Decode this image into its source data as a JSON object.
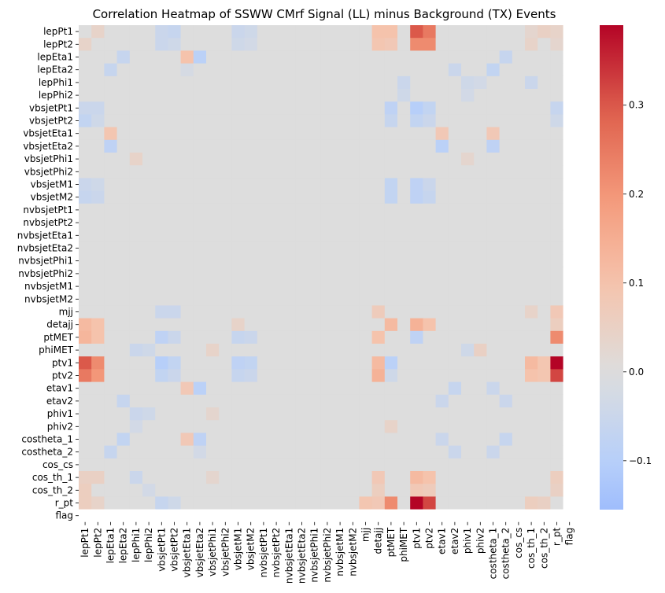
{
  "chart_data": {
    "type": "heatmap",
    "title": "Correlation Heatmap of SSWW CMrf  Signal (LL) minus Background (TX) Events",
    "labels": [
      "lepPt1",
      "lepPt2",
      "lepEta1",
      "lepEta2",
      "lepPhi1",
      "lepPhi2",
      "vbsjetPt1",
      "vbsjetPt2",
      "vbsjetEta1",
      "vbsjetEta2",
      "vbsjetPhi1",
      "vbsjetPhi2",
      "vbsjetM1",
      "vbsjetM2",
      "nvbsjetPt1",
      "nvbsjetPt2",
      "nvbsjetEta1",
      "nvbsjetEta2",
      "nvbsjetPhi1",
      "nvbsjetPhi2",
      "nvbsjetM1",
      "nvbsjetM2",
      "mjj",
      "detajj",
      "ptMET",
      "phiMET",
      "ptv1",
      "ptv2",
      "etav1",
      "etav2",
      "phiv1",
      "phiv2",
      "costheta_1",
      "costheta_2",
      "cos_cs",
      "cos_th_1",
      "cos_th_2",
      "r_pt",
      "flag"
    ],
    "colormap": "coolwarm",
    "vmin": -0.155,
    "vmax": 0.39,
    "colorbar_ticks": [
      -0.1,
      0.0,
      0.1,
      0.2,
      0.3
    ],
    "colorbar_tick_labels": [
      "−0.1",
      "0.0",
      "0.1",
      "0.2",
      "0.3"
    ],
    "cells": [
      [
        "lepPt1",
        "lepPt2",
        0.04
      ],
      [
        "lepPt1",
        "vbsjetPt1",
        -0.05
      ],
      [
        "lepPt1",
        "vbsjetPt2",
        -0.06
      ],
      [
        "lepPt1",
        "vbsjetM1",
        -0.05
      ],
      [
        "lepPt1",
        "vbsjetM2",
        -0.04
      ],
      [
        "lepPt1",
        "detajj",
        0.1
      ],
      [
        "lepPt1",
        "ptMET",
        0.1
      ],
      [
        "lepPt1",
        "ptv1",
        0.3
      ],
      [
        "lepPt1",
        "ptv2",
        0.25
      ],
      [
        "lepPt1",
        "cos_th_1",
        0.03
      ],
      [
        "lepPt1",
        "cos_th_2",
        0.05
      ],
      [
        "lepPt1",
        "r_pt",
        0.04
      ],
      [
        "lepPt2",
        "lepPt1",
        0.04
      ],
      [
        "lepPt2",
        "vbsjetPt1",
        -0.05
      ],
      [
        "lepPt2",
        "vbsjetPt2",
        -0.04
      ],
      [
        "lepPt2",
        "vbsjetM1",
        -0.04
      ],
      [
        "lepPt2",
        "vbsjetM2",
        -0.03
      ],
      [
        "lepPt2",
        "detajj",
        0.09
      ],
      [
        "lepPt2",
        "ptMET",
        0.08
      ],
      [
        "lepPt2",
        "ptv1",
        0.22
      ],
      [
        "lepPt2",
        "ptv2",
        0.22
      ],
      [
        "lepPt2",
        "cos_th_1",
        0.04
      ],
      [
        "lepPt2",
        "r_pt",
        0.03
      ],
      [
        "lepEta1",
        "lepEta2",
        -0.06
      ],
      [
        "lepEta1",
        "vbsjetEta1",
        0.1
      ],
      [
        "lepEta1",
        "vbsjetEta2",
        -0.09
      ],
      [
        "lepEta1",
        "costheta_2",
        -0.06
      ],
      [
        "lepEta2",
        "lepEta1",
        -0.06
      ],
      [
        "lepEta2",
        "vbsjetEta1",
        -0.02
      ],
      [
        "lepEta2",
        "etav2",
        -0.05
      ],
      [
        "lepEta2",
        "costheta_1",
        -0.07
      ],
      [
        "lepPhi1",
        "phiMET",
        -0.05
      ],
      [
        "lepPhi1",
        "phiv1",
        -0.04
      ],
      [
        "lepPhi1",
        "phiv2",
        -0.03
      ],
      [
        "lepPhi1",
        "cos_th_1",
        -0.05
      ],
      [
        "lepPhi2",
        "phiMET",
        -0.04
      ],
      [
        "lepPhi2",
        "phiv1",
        -0.03
      ],
      [
        "vbsjetPt1",
        "lepPt1",
        -0.05
      ],
      [
        "vbsjetPt1",
        "lepPt2",
        -0.05
      ],
      [
        "vbsjetPt1",
        "ptMET",
        -0.08
      ],
      [
        "vbsjetPt1",
        "ptv1",
        -0.1
      ],
      [
        "vbsjetPt1",
        "ptv2",
        -0.07
      ],
      [
        "vbsjetPt1",
        "r_pt",
        -0.06
      ],
      [
        "vbsjetPt2",
        "lepPt1",
        -0.07
      ],
      [
        "vbsjetPt2",
        "lepPt2",
        -0.04
      ],
      [
        "vbsjetPt2",
        "ptMET",
        -0.06
      ],
      [
        "vbsjetPt2",
        "ptv1",
        -0.07
      ],
      [
        "vbsjetPt2",
        "ptv2",
        -0.05
      ],
      [
        "vbsjetPt2",
        "r_pt",
        -0.04
      ],
      [
        "vbsjetEta1",
        "lepEta1",
        0.09
      ],
      [
        "vbsjetEta1",
        "etav1",
        0.08
      ],
      [
        "vbsjetEta1",
        "costheta_1",
        0.08
      ],
      [
        "vbsjetEta2",
        "lepEta1",
        -0.08
      ],
      [
        "vbsjetEta2",
        "etav1",
        -0.09
      ],
      [
        "vbsjetEta2",
        "costheta_1",
        -0.08
      ],
      [
        "vbsjetPhi1",
        "lepPhi1",
        0.04
      ],
      [
        "vbsjetPhi1",
        "phiv1",
        0.03
      ],
      [
        "vbsjetM1",
        "lepPt1",
        -0.05
      ],
      [
        "vbsjetM1",
        "lepPt2",
        -0.04
      ],
      [
        "vbsjetM1",
        "ptMET",
        -0.07
      ],
      [
        "vbsjetM1",
        "ptv1",
        -0.08
      ],
      [
        "vbsjetM1",
        "ptv2",
        -0.05
      ],
      [
        "vbsjetM2",
        "lepPt1",
        -0.06
      ],
      [
        "vbsjetM2",
        "lepPt2",
        -0.05
      ],
      [
        "vbsjetM2",
        "ptMET",
        -0.07
      ],
      [
        "vbsjetM2",
        "ptv1",
        -0.08
      ],
      [
        "vbsjetM2",
        "ptv2",
        -0.06
      ],
      [
        "mjj",
        "vbsjetPt1",
        -0.05
      ],
      [
        "mjj",
        "vbsjetPt2",
        -0.05
      ],
      [
        "mjj",
        "detajj",
        0.07
      ],
      [
        "mjj",
        "cos_th_1",
        0.04
      ],
      [
        "mjj",
        "r_pt",
        0.08
      ],
      [
        "detajj",
        "lepPt1",
        0.12
      ],
      [
        "detajj",
        "lepPt2",
        0.1
      ],
      [
        "detajj",
        "vbsjetM1",
        0.04
      ],
      [
        "detajj",
        "ptMET",
        0.12
      ],
      [
        "detajj",
        "ptv1",
        0.14
      ],
      [
        "detajj",
        "ptv2",
        0.1
      ],
      [
        "detajj",
        "r_pt",
        0.06
      ],
      [
        "ptMET",
        "lepPt1",
        0.13
      ],
      [
        "ptMET",
        "lepPt2",
        0.1
      ],
      [
        "ptMET",
        "vbsjetPt1",
        -0.08
      ],
      [
        "ptMET",
        "vbsjetPt2",
        -0.05
      ],
      [
        "ptMET",
        "vbsjetM1",
        -0.06
      ],
      [
        "ptMET",
        "vbsjetM2",
        -0.05
      ],
      [
        "ptMET",
        "detajj",
        0.1
      ],
      [
        "ptMET",
        "ptv1",
        -0.08
      ],
      [
        "ptMET",
        "r_pt",
        0.22
      ],
      [
        "phiMET",
        "lepPhi1",
        -0.05
      ],
      [
        "phiMET",
        "lepPhi2",
        -0.04
      ],
      [
        "phiMET",
        "vbsjetPhi1",
        0.04
      ],
      [
        "phiMET",
        "phiv1",
        -0.04
      ],
      [
        "phiMET",
        "phiv2",
        0.05
      ],
      [
        "ptv1",
        "lepPt1",
        0.3
      ],
      [
        "ptv1",
        "lepPt2",
        0.22
      ],
      [
        "ptv1",
        "vbsjetPt1",
        -0.1
      ],
      [
        "ptv1",
        "vbsjetPt2",
        -0.07
      ],
      [
        "ptv1",
        "vbsjetM1",
        -0.08
      ],
      [
        "ptv1",
        "vbsjetM2",
        -0.07
      ],
      [
        "ptv1",
        "detajj",
        0.12
      ],
      [
        "ptv1",
        "ptMET",
        -0.09
      ],
      [
        "ptv1",
        "cos_th_1",
        0.12
      ],
      [
        "ptv1",
        "cos_th_2",
        0.09
      ],
      [
        "ptv1",
        "r_pt",
        0.39
      ],
      [
        "ptv2",
        "lepPt1",
        0.25
      ],
      [
        "ptv2",
        "lepPt2",
        0.2
      ],
      [
        "ptv2",
        "vbsjetPt1",
        -0.07
      ],
      [
        "ptv2",
        "vbsjetPt2",
        -0.05
      ],
      [
        "ptv2",
        "vbsjetM1",
        -0.06
      ],
      [
        "ptv2",
        "vbsjetM2",
        -0.05
      ],
      [
        "ptv2",
        "detajj",
        0.14
      ],
      [
        "ptv2",
        "ptMET",
        -0.04
      ],
      [
        "ptv2",
        "cos_th_1",
        0.1
      ],
      [
        "ptv2",
        "cos_th_2",
        0.09
      ],
      [
        "ptv2",
        "r_pt",
        0.32
      ],
      [
        "etav1",
        "vbsjetEta1",
        0.08
      ],
      [
        "etav1",
        "vbsjetEta2",
        -0.09
      ],
      [
        "etav1",
        "etav2",
        -0.06
      ],
      [
        "etav1",
        "costheta_1",
        -0.05
      ],
      [
        "etav2",
        "lepEta2",
        -0.06
      ],
      [
        "etav2",
        "etav1",
        -0.05
      ],
      [
        "etav2",
        "costheta_2",
        -0.05
      ],
      [
        "phiv1",
        "lepPhi1",
        -0.05
      ],
      [
        "phiv1",
        "lepPhi2",
        -0.04
      ],
      [
        "phiv1",
        "vbsjetPhi1",
        0.03
      ],
      [
        "phiv2",
        "lepPhi1",
        -0.03
      ],
      [
        "phiv2",
        "ptMET",
        0.04
      ],
      [
        "costheta_1",
        "lepEta2",
        -0.07
      ],
      [
        "costheta_1",
        "vbsjetEta1",
        0.08
      ],
      [
        "costheta_1",
        "vbsjetEta2",
        -0.08
      ],
      [
        "costheta_1",
        "etav1",
        -0.05
      ],
      [
        "costheta_1",
        "costheta_2",
        -0.06
      ],
      [
        "costheta_2",
        "lepEta1",
        -0.06
      ],
      [
        "costheta_2",
        "vbsjetEta2",
        -0.03
      ],
      [
        "costheta_2",
        "etav2",
        -0.05
      ],
      [
        "costheta_2",
        "costheta_1",
        -0.05
      ],
      [
        "cos_th_1",
        "lepPt1",
        0.05
      ],
      [
        "cos_th_1",
        "lepPt2",
        0.05
      ],
      [
        "cos_th_1",
        "lepPhi1",
        -0.05
      ],
      [
        "cos_th_1",
        "vbsjetPhi1",
        0.03
      ],
      [
        "cos_th_1",
        "detajj",
        0.08
      ],
      [
        "cos_th_1",
        "ptv1",
        0.12
      ],
      [
        "cos_th_1",
        "ptv2",
        0.1
      ],
      [
        "cos_th_1",
        "r_pt",
        0.06
      ],
      [
        "cos_th_2",
        "lepPt1",
        0.06
      ],
      [
        "cos_th_2",
        "lepPhi2",
        -0.03
      ],
      [
        "cos_th_2",
        "detajj",
        0.06
      ],
      [
        "cos_th_2",
        "ptv1",
        0.08
      ],
      [
        "cos_th_2",
        "ptv2",
        0.07
      ],
      [
        "cos_th_2",
        "r_pt",
        0.05
      ],
      [
        "r_pt",
        "lepPt1",
        0.06
      ],
      [
        "r_pt",
        "lepPt2",
        0.04
      ],
      [
        "r_pt",
        "vbsjetPt1",
        -0.06
      ],
      [
        "r_pt",
        "vbsjetPt2",
        -0.04
      ],
      [
        "r_pt",
        "mjj",
        0.09
      ],
      [
        "r_pt",
        "detajj",
        0.08
      ],
      [
        "r_pt",
        "ptMET",
        0.22
      ],
      [
        "r_pt",
        "ptv1",
        0.39
      ],
      [
        "r_pt",
        "ptv2",
        0.32
      ],
      [
        "r_pt",
        "cos_th_1",
        0.06
      ],
      [
        "r_pt",
        "cos_th_2",
        0.05
      ]
    ]
  }
}
